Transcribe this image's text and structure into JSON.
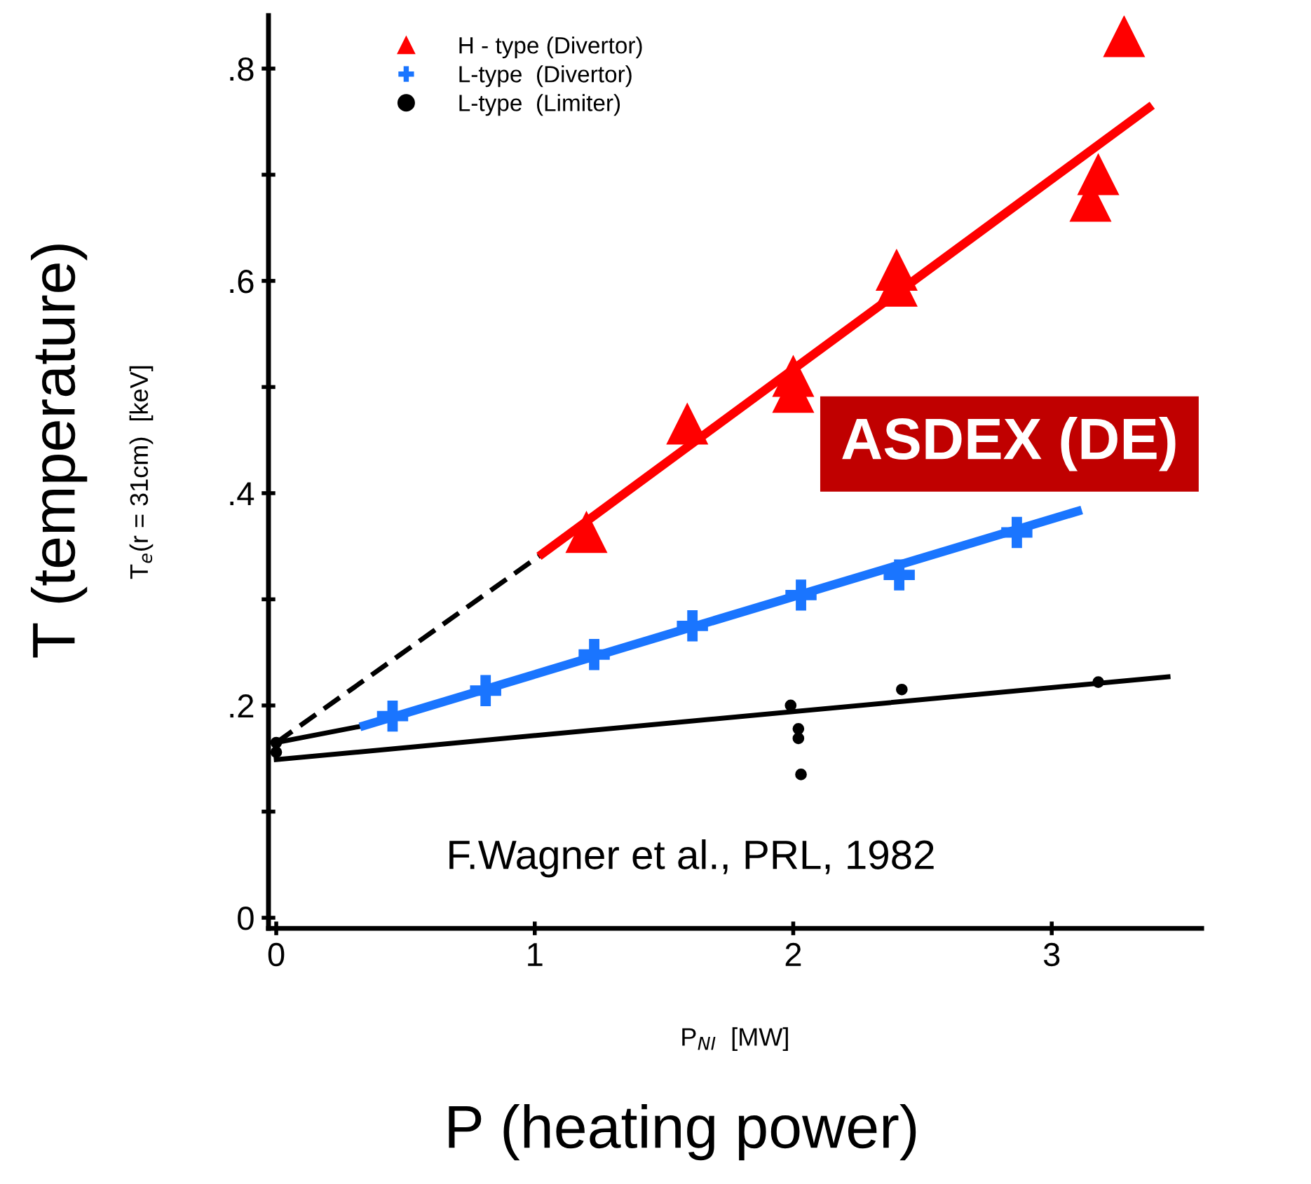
{
  "chart_data": {
    "type": "scatter",
    "xlabel": "P$_{NI}$  [MW]",
    "ylabel": "T$_{e}$(r = 31cm)  [keV]",
    "xlim": [
      -0.03,
      3.58
    ],
    "ylim": [
      -0.01,
      0.85
    ],
    "xticks": [
      0,
      1,
      2,
      3
    ],
    "yticks": [
      0,
      {
        "value": 0.1,
        "label": null
      },
      {
        "value": 0.2,
        "label": ".2"
      },
      {
        "value": 0.3,
        "label": null
      },
      {
        "value": 0.4,
        "label": ".4"
      },
      {
        "value": 0.5,
        "label": null
      },
      {
        "value": 0.6,
        "label": ".6"
      },
      {
        "value": 0.7,
        "label": null
      },
      {
        "value": 0.8,
        "label": ".8"
      }
    ],
    "grid": false,
    "legend": "top left",
    "series": [
      {
        "type": "line",
        "color": "#000000",
        "line_style": "dashed",
        "marker": "none",
        "x": [
          0,
          1.03
        ],
        "values": [
          0.165,
          0.343
        ]
      },
      {
        "type": "line",
        "color": "#000000",
        "line_style": "solid",
        "marker": "none",
        "x": [
          0,
          0.34
        ],
        "values": [
          0.165,
          0.181
        ]
      },
      {
        "type": "line",
        "color": "#000000",
        "line_style": "solid",
        "marker": "none",
        "x": [
          0,
          3.45
        ],
        "values": [
          0.149,
          0.227
        ]
      },
      {
        "type": "line",
        "color": "#ff0000",
        "line_style": "solid",
        "marker": "none",
        "x": [
          1.03,
          3.375
        ],
        "values": [
          0.343,
          0.763
        ]
      },
      {
        "type": "line",
        "color": "#1a75ff",
        "line_style": "solid",
        "marker": "none",
        "x": [
          0.34,
          3.1
        ],
        "values": [
          0.181,
          0.383
        ]
      },
      {
        "name": "H - type (Divertor)",
        "color": "#ff0000",
        "marker": "triangle",
        "x": [
          1.2,
          1.59,
          2.0,
          2.0,
          2.4,
          2.4,
          3.18,
          3.15,
          3.28
        ],
        "values": [
          0.363,
          0.465,
          0.51,
          0.495,
          0.61,
          0.595,
          0.7,
          0.675,
          0.83
        ]
      },
      {
        "name": "L-type  (Divertor)",
        "color": "#1a75ff",
        "marker": "cross",
        "x": [
          0.45,
          0.81,
          1.23,
          1.61,
          2.03,
          2.41,
          2.865
        ],
        "values": [
          0.19,
          0.214,
          0.248,
          0.275,
          0.304,
          0.323,
          0.363
        ]
      },
      {
        "name": "L-type  (Limiter)",
        "color": "#000000",
        "marker": "circle",
        "x": [
          0,
          0,
          1.99,
          2.02,
          2.02,
          2.03,
          2.42,
          3.18
        ],
        "values": [
          0.156,
          0.165,
          0.2,
          0.178,
          0.169,
          0.135,
          0.215,
          0.222
        ]
      }
    ],
    "annotations": [
      "T (temperature)",
      "P (heating power)",
      "ASDEX (DE)",
      "F.Wagner et al., PRL, 1982"
    ]
  }
}
